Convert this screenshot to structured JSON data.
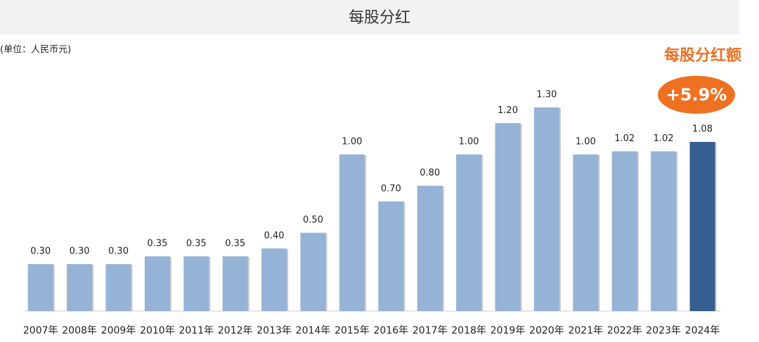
{
  "chart_data": {
    "type": "bar",
    "title": "每股分红",
    "subtitle": "(单位：人民币元)",
    "annotations": [
      "每股分红额",
      "+5.9%"
    ],
    "categories": [
      "2007年",
      "2008年",
      "2009年",
      "2010年",
      "2011年",
      "2012年",
      "2013年",
      "2014年",
      "2015年",
      "2016年",
      "2017年",
      "2018年",
      "2019年",
      "2020年",
      "2021年",
      "2022年",
      "2023年",
      "2024年"
    ],
    "values": [
      0.3,
      0.3,
      0.3,
      0.35,
      0.35,
      0.35,
      0.4,
      0.5,
      1.0,
      0.7,
      0.8,
      1.0,
      1.2,
      1.3,
      1.0,
      1.02,
      1.02,
      1.08
    ],
    "value_labels": [
      "0.30",
      "0.30",
      "0.30",
      "0.35",
      "0.35",
      "0.35",
      "0.40",
      "0.50",
      "1.00",
      "0.70",
      "0.80",
      "1.00",
      "1.20",
      "1.30",
      "1.00",
      "1.02",
      "1.02",
      "1.08"
    ],
    "colors": [
      "#95b3d7",
      "#95b3d7",
      "#95b3d7",
      "#95b3d7",
      "#95b3d7",
      "#95b3d7",
      "#95b3d7",
      "#95b3d7",
      "#95b3d7",
      "#95b3d7",
      "#95b3d7",
      "#95b3d7",
      "#95b3d7",
      "#95b3d7",
      "#95b3d7",
      "#95b3d7",
      "#95b3d7",
      "#355e91"
    ],
    "annotation_color": "#f07021"
  }
}
